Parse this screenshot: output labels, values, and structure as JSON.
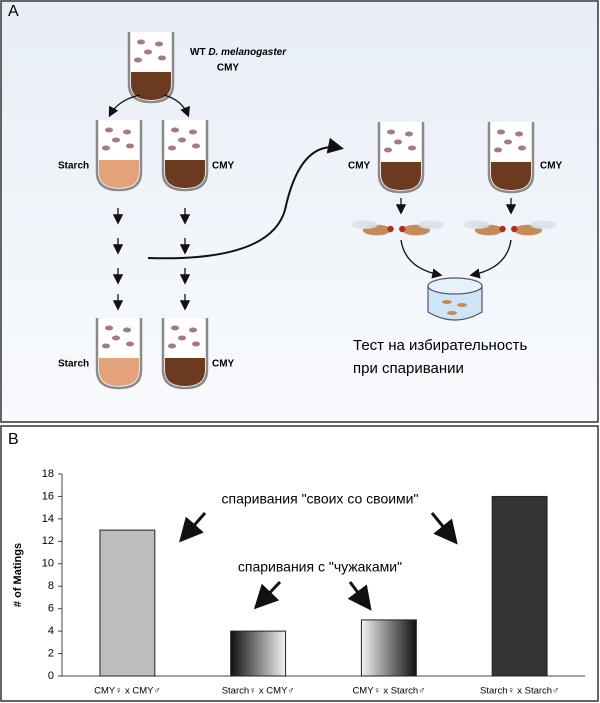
{
  "panel_a": {
    "label": "A",
    "wt_label": "WT",
    "species": "D. melanogaster",
    "top_food": "CMY",
    "left_tube": "Starch",
    "right_tube": "CMY",
    "test_left": "CMY",
    "test_right": "CMY",
    "bottom_left": "Starch",
    "bottom_right": "CMY",
    "test_title": "Тест на избирательность",
    "test_subtitle": "при спаривании"
  },
  "chart_data": {
    "type": "bar",
    "panel_label": "B",
    "ylabel": "# of Matings",
    "categories": [
      "CMY♀ x CMY♂",
      "Starch♀ x CMY♂",
      "CMY♀ x Starch♂",
      "Starch♀ x Starch♂"
    ],
    "values": [
      13,
      4,
      5,
      16
    ],
    "colors": [
      "#bdbdbd",
      [
        "#111111",
        "#f2f2f2"
      ],
      [
        "#f2f2f2",
        "#111111"
      ],
      "#333333"
    ],
    "ylim": [
      0,
      18
    ],
    "yticks": [
      0,
      2,
      4,
      6,
      8,
      10,
      12,
      14,
      16,
      18
    ],
    "annotations": [
      "спаривания \"своих со своими\"",
      "спаривания с \"чужаками\""
    ]
  }
}
